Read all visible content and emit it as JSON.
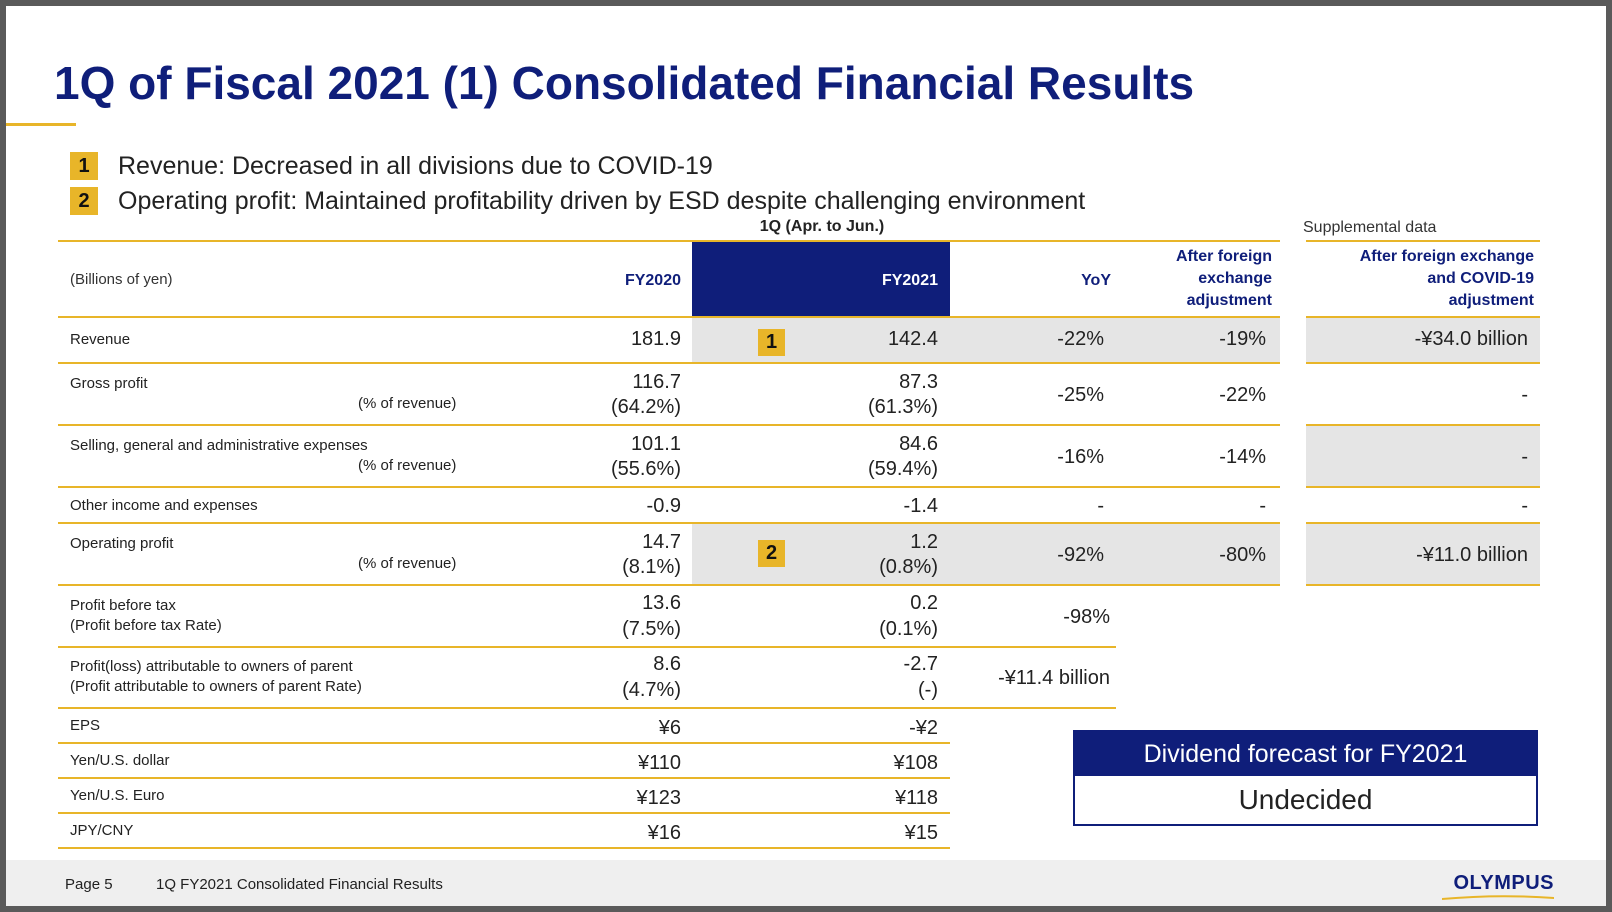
{
  "title": "1Q of Fiscal 2021 (1) Consolidated Financial Results",
  "bullets": [
    {
      "num": "1",
      "text": "Revenue: Decreased in all divisions due to COVID-19"
    },
    {
      "num": "2",
      "text": "Operating profit: Maintained profitability driven by ESD despite challenging environment"
    }
  ],
  "table": {
    "period": "1Q (Apr. to Jun.)",
    "supplemental_label": "Supplemental data",
    "unit_label": "(Billions of yen)",
    "headers": {
      "fy2020": "FY2020",
      "fy2021": "FY2021",
      "yoy": "YoY",
      "fx_adj": [
        "After foreign",
        "exchange",
        "adjustment"
      ],
      "fx_covid_adj": [
        "After foreign exchange",
        "and COVID-19",
        "adjustment"
      ]
    },
    "rows": {
      "revenue": {
        "label": "Revenue",
        "fy2020": "181.9",
        "badge": "1",
        "fy2021": "142.4",
        "yoy": "-22%",
        "fx": "-19%",
        "supp": "-¥34.0 billion"
      },
      "gross": {
        "label": "Gross profit",
        "sub": "(% of revenue)",
        "fy2020": "116.7",
        "fy2020_pct": "(64.2%)",
        "fy2021": "87.3",
        "fy2021_pct": "(61.3%)",
        "yoy": "-25%",
        "fx": "-22%",
        "supp": "-"
      },
      "sga": {
        "label": "Selling, general and administrative expenses",
        "sub": "(% of revenue)",
        "fy2020": "101.1",
        "fy2020_pct": "(55.6%)",
        "fy2021": "84.6",
        "fy2021_pct": "(59.4%)",
        "yoy": "-16%",
        "fx": "-14%",
        "supp": "-"
      },
      "other": {
        "label": "Other income and expenses",
        "fy2020": "-0.9",
        "fy2021": "-1.4",
        "yoy": "-",
        "fx": "-",
        "supp": "-"
      },
      "op": {
        "label": "Operating profit",
        "sub": "(% of revenue)",
        "fy2020": "14.7",
        "fy2020_pct": "(8.1%)",
        "badge": "2",
        "fy2021": "1.2",
        "fy2021_pct": "(0.8%)",
        "yoy": "-92%",
        "fx": "-80%",
        "supp": "-¥11.0 billion"
      },
      "pbt": {
        "label": "Profit before tax",
        "label2": "(Profit before tax Rate)",
        "fy2020": "13.6",
        "fy2020_pct": "(7.5%)",
        "fy2021": "0.2",
        "fy2021_pct": "(0.1%)",
        "yoy": "-98%"
      },
      "pl": {
        "label": "Profit(loss) attributable to owners of parent",
        "label2": "(Profit attributable to owners of parent Rate)",
        "fy2020": "8.6",
        "fy2020_pct": "(4.7%)",
        "fy2021": "-2.7",
        "fy2021_pct": "(-)",
        "yoy": "-¥11.4 billion"
      },
      "eps": {
        "label": "EPS",
        "fy2020": "¥6",
        "fy2021": "-¥2"
      },
      "usd": {
        "label": "Yen/U.S. dollar",
        "fy2020": "¥110",
        "fy2021": "¥108"
      },
      "eur": {
        "label": "Yen/U.S. Euro",
        "fy2020": "¥123",
        "fy2021": "¥118"
      },
      "cny": {
        "label": "JPY/CNY",
        "fy2020": "¥16",
        "fy2021": "¥15"
      }
    }
  },
  "dividend": {
    "heading": "Dividend forecast for FY2021",
    "value": "Undecided"
  },
  "footer": {
    "page": "Page 5",
    "title": "1Q FY2021 Consolidated Financial Results",
    "logo": "OLYMPUS"
  },
  "colors": {
    "navy": "#0f1e7a",
    "gold": "#e8b529",
    "shade": "#e5e5e5"
  }
}
